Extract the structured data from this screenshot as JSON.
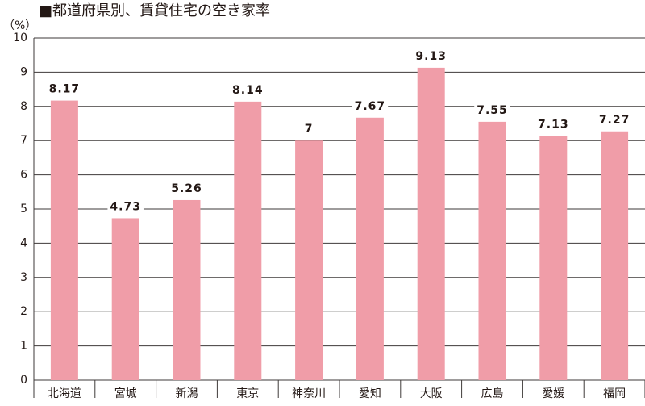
{
  "chart_data": {
    "type": "bar",
    "title": "■都道府県別、賃貸住宅の空き家率",
    "y_label": "（%）",
    "categories": [
      "北海道",
      "宮城",
      "新潟",
      "東京",
      "神奈川",
      "愛知",
      "大阪",
      "広島",
      "愛媛",
      "福岡"
    ],
    "values": [
      8.17,
      4.73,
      5.26,
      8.14,
      7,
      7.67,
      9.13,
      7.55,
      7.13,
      7.27
    ],
    "color": "#f09da8",
    "ylim": [
      0,
      10
    ],
    "yticks": [
      0,
      1,
      2,
      3,
      4,
      5,
      6,
      7,
      8,
      9,
      10
    ],
    "grid": true
  }
}
